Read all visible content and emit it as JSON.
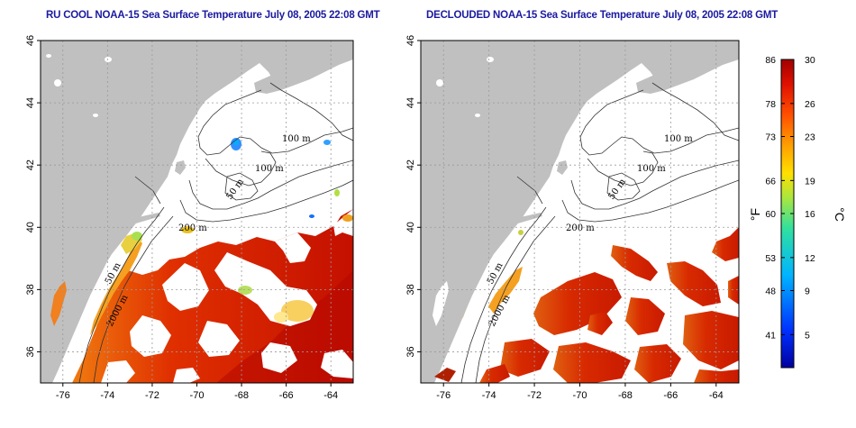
{
  "panels": [
    {
      "id": "left",
      "title": "RU COOL NOAA-15 Sea Surface Temperature July 08, 2005 22:08 GMT",
      "mode": "cloudy"
    },
    {
      "id": "right",
      "title": "DECLOUDED NOAA-15 Sea Surface Temperature July 08, 2005 22:08 GMT",
      "mode": "declouded"
    }
  ],
  "axes": {
    "lon_range": [
      -77,
      -63
    ],
    "lat_range": [
      35,
      46
    ],
    "lon_ticks": [
      "-76",
      "-74",
      "-72",
      "-70",
      "-68",
      "-66",
      "-64"
    ],
    "lon_tick_values": [
      -76,
      -74,
      -72,
      -70,
      -68,
      -66,
      -64
    ],
    "lat_ticks": [
      "36",
      "38",
      "40",
      "42",
      "44",
      "46"
    ],
    "lat_tick_values": [
      36,
      38,
      40,
      42,
      44,
      46
    ]
  },
  "contour_labels": [
    "100 m",
    "100 m",
    "50 m",
    "200 m",
    "50 m",
    "2000 m"
  ],
  "colorbar": {
    "fahrenheit_ticks": [
      "86",
      "78",
      "73",
      "66",
      "60",
      "53",
      "48",
      "41"
    ],
    "celsius_ticks": [
      "30",
      "26",
      "23",
      "19",
      "16",
      "12",
      "9",
      "5"
    ],
    "celsius_tick_values": [
      30,
      26,
      23,
      19,
      16,
      12,
      9,
      5
    ],
    "range_c": [
      2,
      30
    ],
    "fahrenheit_unit": "°F",
    "celsius_unit": "°C"
  },
  "colors": {
    "land": "#c0c0c0",
    "ocean_cloud": "#ffffff",
    "grid": "#9a9a9a",
    "title": "#1a1aa0"
  }
}
